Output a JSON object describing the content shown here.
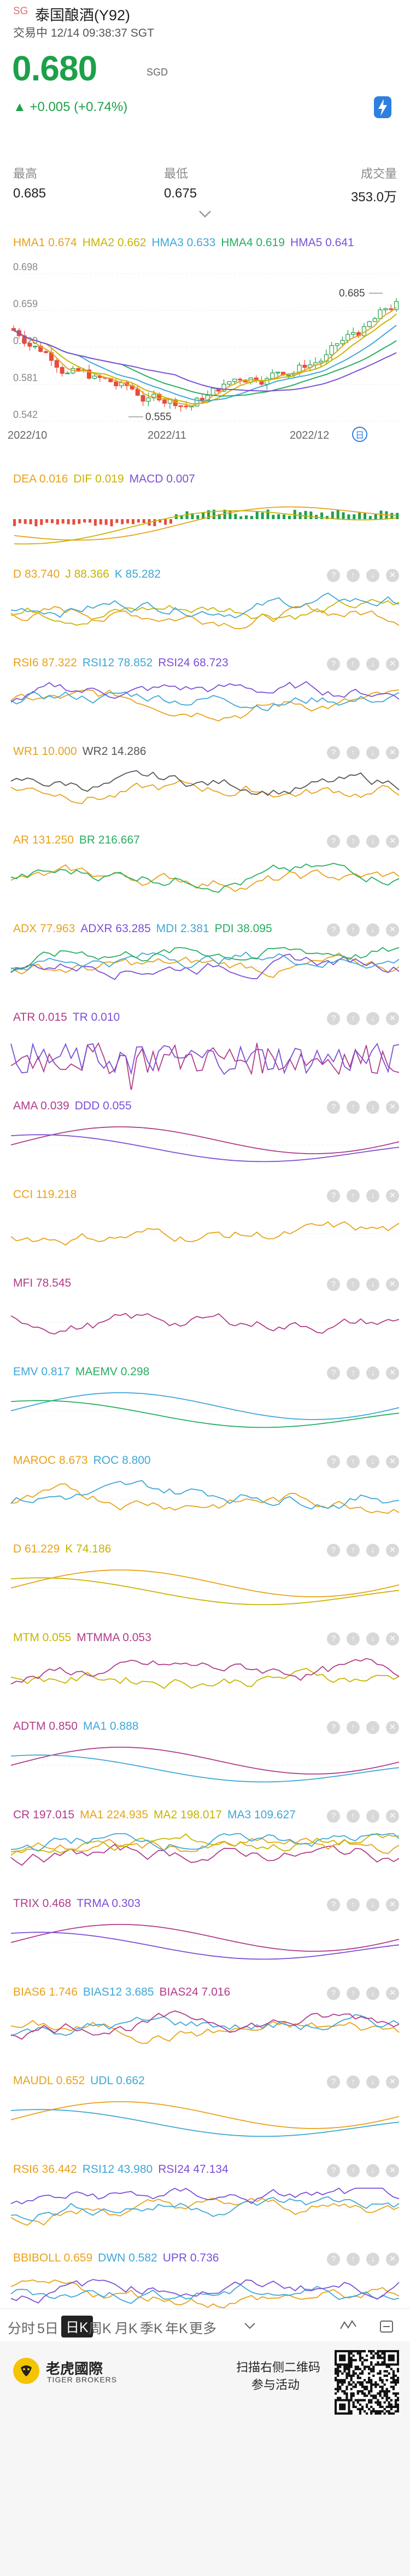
{
  "header": {
    "market_tag": "SG",
    "stock_name": "泰国酿酒(Y92)",
    "status_line": "交易中 12/14 09:38:37 SGT",
    "price": "0.680",
    "currency": "SGD",
    "change": "▲ +0.005 (+0.74%)",
    "flash_icon": "bolt-icon"
  },
  "stats": [
    {
      "label": "最高",
      "value": "0.685"
    },
    {
      "label": "最低",
      "value": "0.675"
    },
    {
      "label": "成交量",
      "value": "353.0万"
    }
  ],
  "main_chart": {
    "legend": [
      {
        "text": "HMA1 0.674",
        "color": "#e8a21a"
      },
      {
        "text": "HMA2 0.662",
        "color": "#c8b400"
      },
      {
        "text": "HMA3 0.633",
        "color": "#3fa7d6"
      },
      {
        "text": "HMA4 0.619",
        "color": "#27ae60"
      },
      {
        "text": "HMA5 0.641",
        "color": "#7b4fd6"
      }
    ],
    "y_labels": [
      "0.698",
      "0.659",
      "0.620",
      "0.581",
      "0.542"
    ],
    "x_labels": [
      "2022/10",
      "2022/11",
      "2022/12"
    ],
    "annot_high": "0.685",
    "annot_low": "0.555",
    "calendar_badge": "日"
  },
  "panels": [
    {
      "name": "dea-macd",
      "legend": [
        {
          "text": "DEA 0.016",
          "color": "#e8a21a"
        },
        {
          "text": "DIF 0.019",
          "color": "#c8b400"
        },
        {
          "text": "MACD 0.007",
          "color": "#7b4fd6"
        }
      ],
      "type": "macd"
    },
    {
      "name": "kdj",
      "legend": [
        {
          "text": "D 83.740",
          "color": "#e8a21a"
        },
        {
          "text": "J 88.366",
          "color": "#c8b400"
        },
        {
          "text": "K 85.282",
          "color": "#3fa7d6"
        }
      ],
      "type": "lines3"
    },
    {
      "name": "rsi",
      "legend": [
        {
          "text": "RSI6 87.322",
          "color": "#e8a21a"
        },
        {
          "text": "RSI12 78.852",
          "color": "#3fa7d6"
        },
        {
          "text": "RSI24 68.723",
          "color": "#7b4fd6"
        }
      ],
      "type": "lines3"
    },
    {
      "name": "wr",
      "legend": [
        {
          "text": "WR1 10.000",
          "color": "#e8a21a"
        },
        {
          "text": "WR2 14.286",
          "color": "#555555"
        }
      ],
      "type": "lines2"
    },
    {
      "name": "arbr",
      "legend": [
        {
          "text": "AR 131.250",
          "color": "#e8a21a"
        },
        {
          "text": "BR 216.667",
          "color": "#27ae60"
        }
      ],
      "type": "lines2"
    },
    {
      "name": "dmi",
      "legend": [
        {
          "text": "ADX 77.963",
          "color": "#e8a21a"
        },
        {
          "text": "ADXR 63.285",
          "color": "#7b4fd6"
        },
        {
          "text": "MDI 2.381",
          "color": "#3fa7d6"
        },
        {
          "text": "PDI 38.095",
          "color": "#27ae60"
        }
      ],
      "type": "lines4"
    },
    {
      "name": "atr",
      "legend": [
        {
          "text": "ATR 0.015",
          "color": "#b03c8a"
        },
        {
          "text": "TR 0.010",
          "color": "#7b4fd6"
        }
      ],
      "type": "spiky"
    },
    {
      "name": "ama",
      "legend": [
        {
          "text": "AMA 0.039",
          "color": "#b03c8a"
        },
        {
          "text": "DDD 0.055",
          "color": "#7b4fd6"
        }
      ],
      "type": "smooth2"
    },
    {
      "name": "cci",
      "legend": [
        {
          "text": "CCI 119.218",
          "color": "#e8a21a"
        }
      ],
      "type": "single"
    },
    {
      "name": "mfi",
      "legend": [
        {
          "text": "MFI 78.545",
          "color": "#b03c8a"
        }
      ],
      "type": "single"
    },
    {
      "name": "emv",
      "legend": [
        {
          "text": "EMV 0.817",
          "color": "#3fa7d6"
        },
        {
          "text": "MAEMV 0.298",
          "color": "#27ae60"
        }
      ],
      "type": "smooth2"
    },
    {
      "name": "roc",
      "legend": [
        {
          "text": "MAROC 8.673",
          "color": "#e8a21a"
        },
        {
          "text": "ROC 8.800",
          "color": "#3fa7d6"
        }
      ],
      "type": "lines2"
    },
    {
      "name": "dk",
      "legend": [
        {
          "text": "D 61.229",
          "color": "#e8a21a"
        },
        {
          "text": "K 74.186",
          "color": "#c8b400"
        }
      ],
      "type": "smooth2"
    },
    {
      "name": "mtm",
      "legend": [
        {
          "text": "MTM 0.055",
          "color": "#c8b400"
        },
        {
          "text": "MTMMA 0.053",
          "color": "#b03c8a"
        }
      ],
      "type": "lines2"
    },
    {
      "name": "adtm",
      "legend": [
        {
          "text": "ADTM 0.850",
          "color": "#b03c8a"
        },
        {
          "text": "MA1 0.888",
          "color": "#3fa7d6"
        }
      ],
      "type": "smooth2"
    },
    {
      "name": "cr",
      "legend": [
        {
          "text": "CR 197.015",
          "color": "#b03c8a"
        },
        {
          "text": "MA1 224.935",
          "color": "#e8a21a"
        },
        {
          "text": "MA2 198.017",
          "color": "#c8b400"
        },
        {
          "text": "MA3 109.627",
          "color": "#3fa7d6"
        }
      ],
      "type": "lines4"
    },
    {
      "name": "trix",
      "legend": [
        {
          "text": "TRIX 0.468",
          "color": "#b03c8a"
        },
        {
          "text": "TRMA 0.303",
          "color": "#7b4fd6"
        }
      ],
      "type": "smooth2"
    },
    {
      "name": "bias",
      "legend": [
        {
          "text": "BIAS6 1.746",
          "color": "#e8a21a"
        },
        {
          "text": "BIAS12 3.685",
          "color": "#3fa7d6"
        },
        {
          "text": "BIAS24 7.016",
          "color": "#b03c8a"
        }
      ],
      "type": "lines3"
    },
    {
      "name": "maudl",
      "legend": [
        {
          "text": "MAUDL 0.652",
          "color": "#e8a21a"
        },
        {
          "text": "UDL 0.662",
          "color": "#3fa7d6"
        }
      ],
      "type": "smooth2"
    },
    {
      "name": "rsi2",
      "legend": [
        {
          "text": "RSI6 36.442",
          "color": "#e8a21a"
        },
        {
          "text": "RSI12 43.980",
          "color": "#3fa7d6"
        },
        {
          "text": "RSI24 47.134",
          "color": "#7b4fd6"
        }
      ],
      "type": "lines3"
    },
    {
      "name": "bbiboll",
      "legend": [
        {
          "text": "BBIBOLL 0.659",
          "color": "#e8a21a"
        },
        {
          "text": "DWN 0.582",
          "color": "#3fa7d6"
        },
        {
          "text": "UPR 0.736",
          "color": "#7b4fd6"
        }
      ],
      "type": "lines3"
    }
  ],
  "tabs": [
    "分时",
    "5日",
    "日K",
    "周K",
    "月K",
    "季K",
    "年K",
    "更多"
  ],
  "active_tab": 2,
  "footer": {
    "brand_cn": "老虎國際",
    "brand_en": "TIGER BROKERS",
    "qr_text_1": "扫描右侧二维码",
    "qr_text_2": "参与活动"
  }
}
